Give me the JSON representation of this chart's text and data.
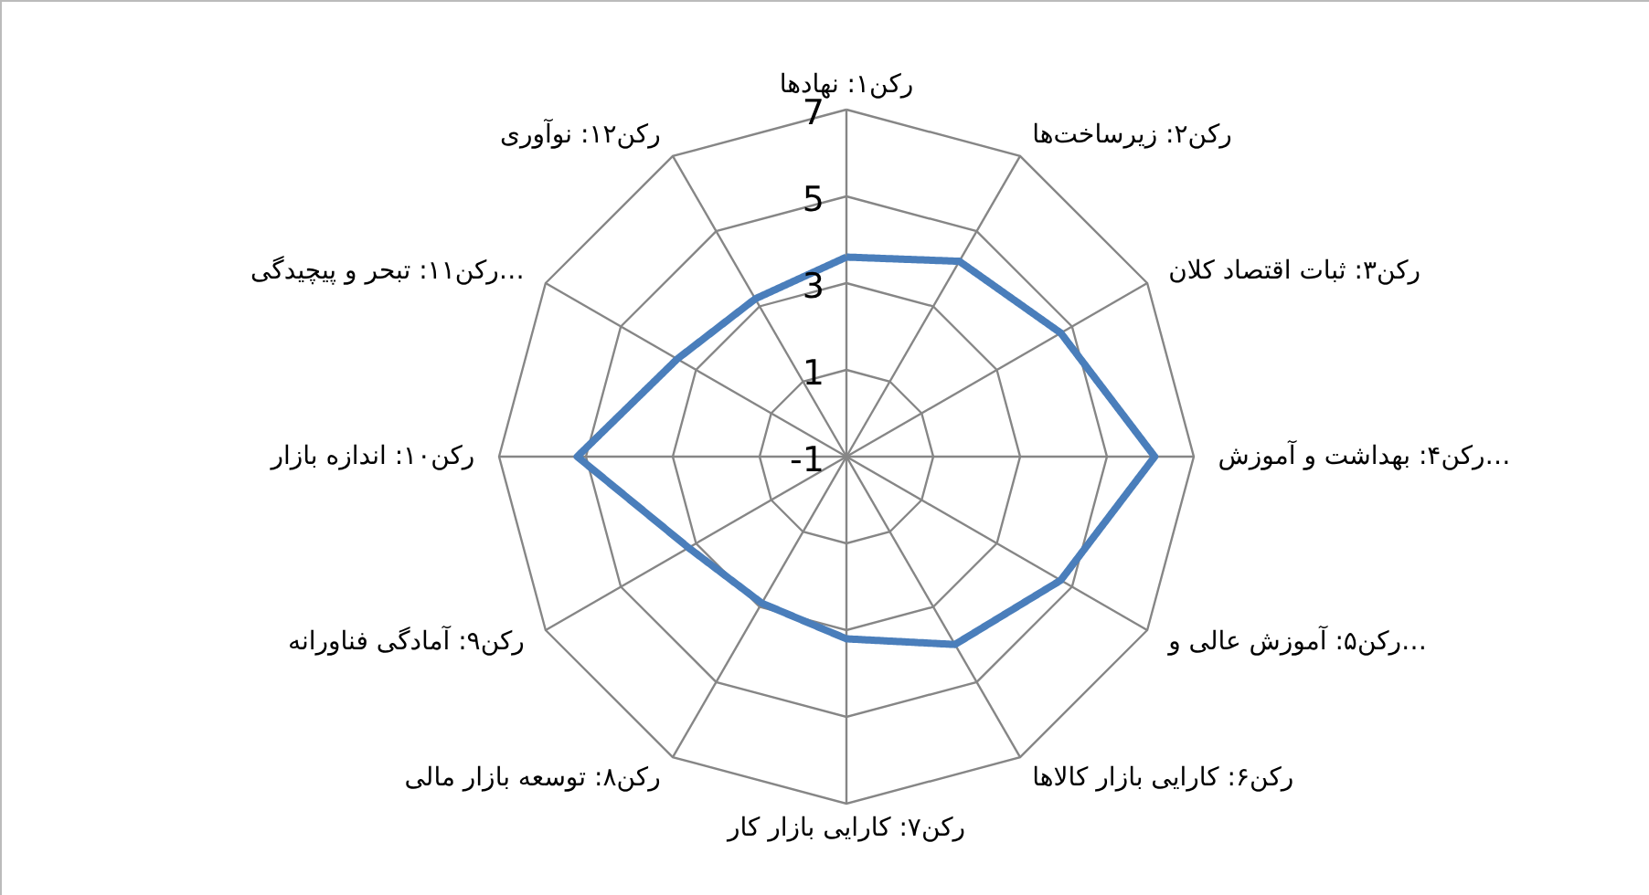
{
  "chart_data": {
    "type": "radar",
    "categories": [
      "رکن۱: نهادها",
      "رکن۲: زیرساخت‌ها",
      "رکن۳: ثبات اقتصاد کلان",
      "رکن۴: بهداشت و آموزش…",
      "رکن۵: آموزش عالی و…",
      "رکن۶: کارایی بازار کالاها",
      "رکن۷: کارایی بازار کار",
      "رکن۸: توسعه بازار مالی",
      "رکن۹: آمادگی فناورانه",
      "رکن۱۰: اندازه بازار",
      "رکن۱۱: تبحر و پیچیدگی…",
      "رکن۱۲: نوآوری"
    ],
    "series": [
      {
        "color": "#4a7ebb",
        "values": [
          3.6,
          4.2,
          4.7,
          6.1,
          4.7,
          4.0,
          3.2,
          2.9,
          3.2,
          5.2,
          3.5,
          3.2
        ]
      }
    ],
    "ylim": [
      -1,
      7
    ],
    "yticks": [
      -1,
      1,
      3,
      5,
      7
    ],
    "grid": true,
    "marker": "none",
    "line_style": "solid"
  }
}
